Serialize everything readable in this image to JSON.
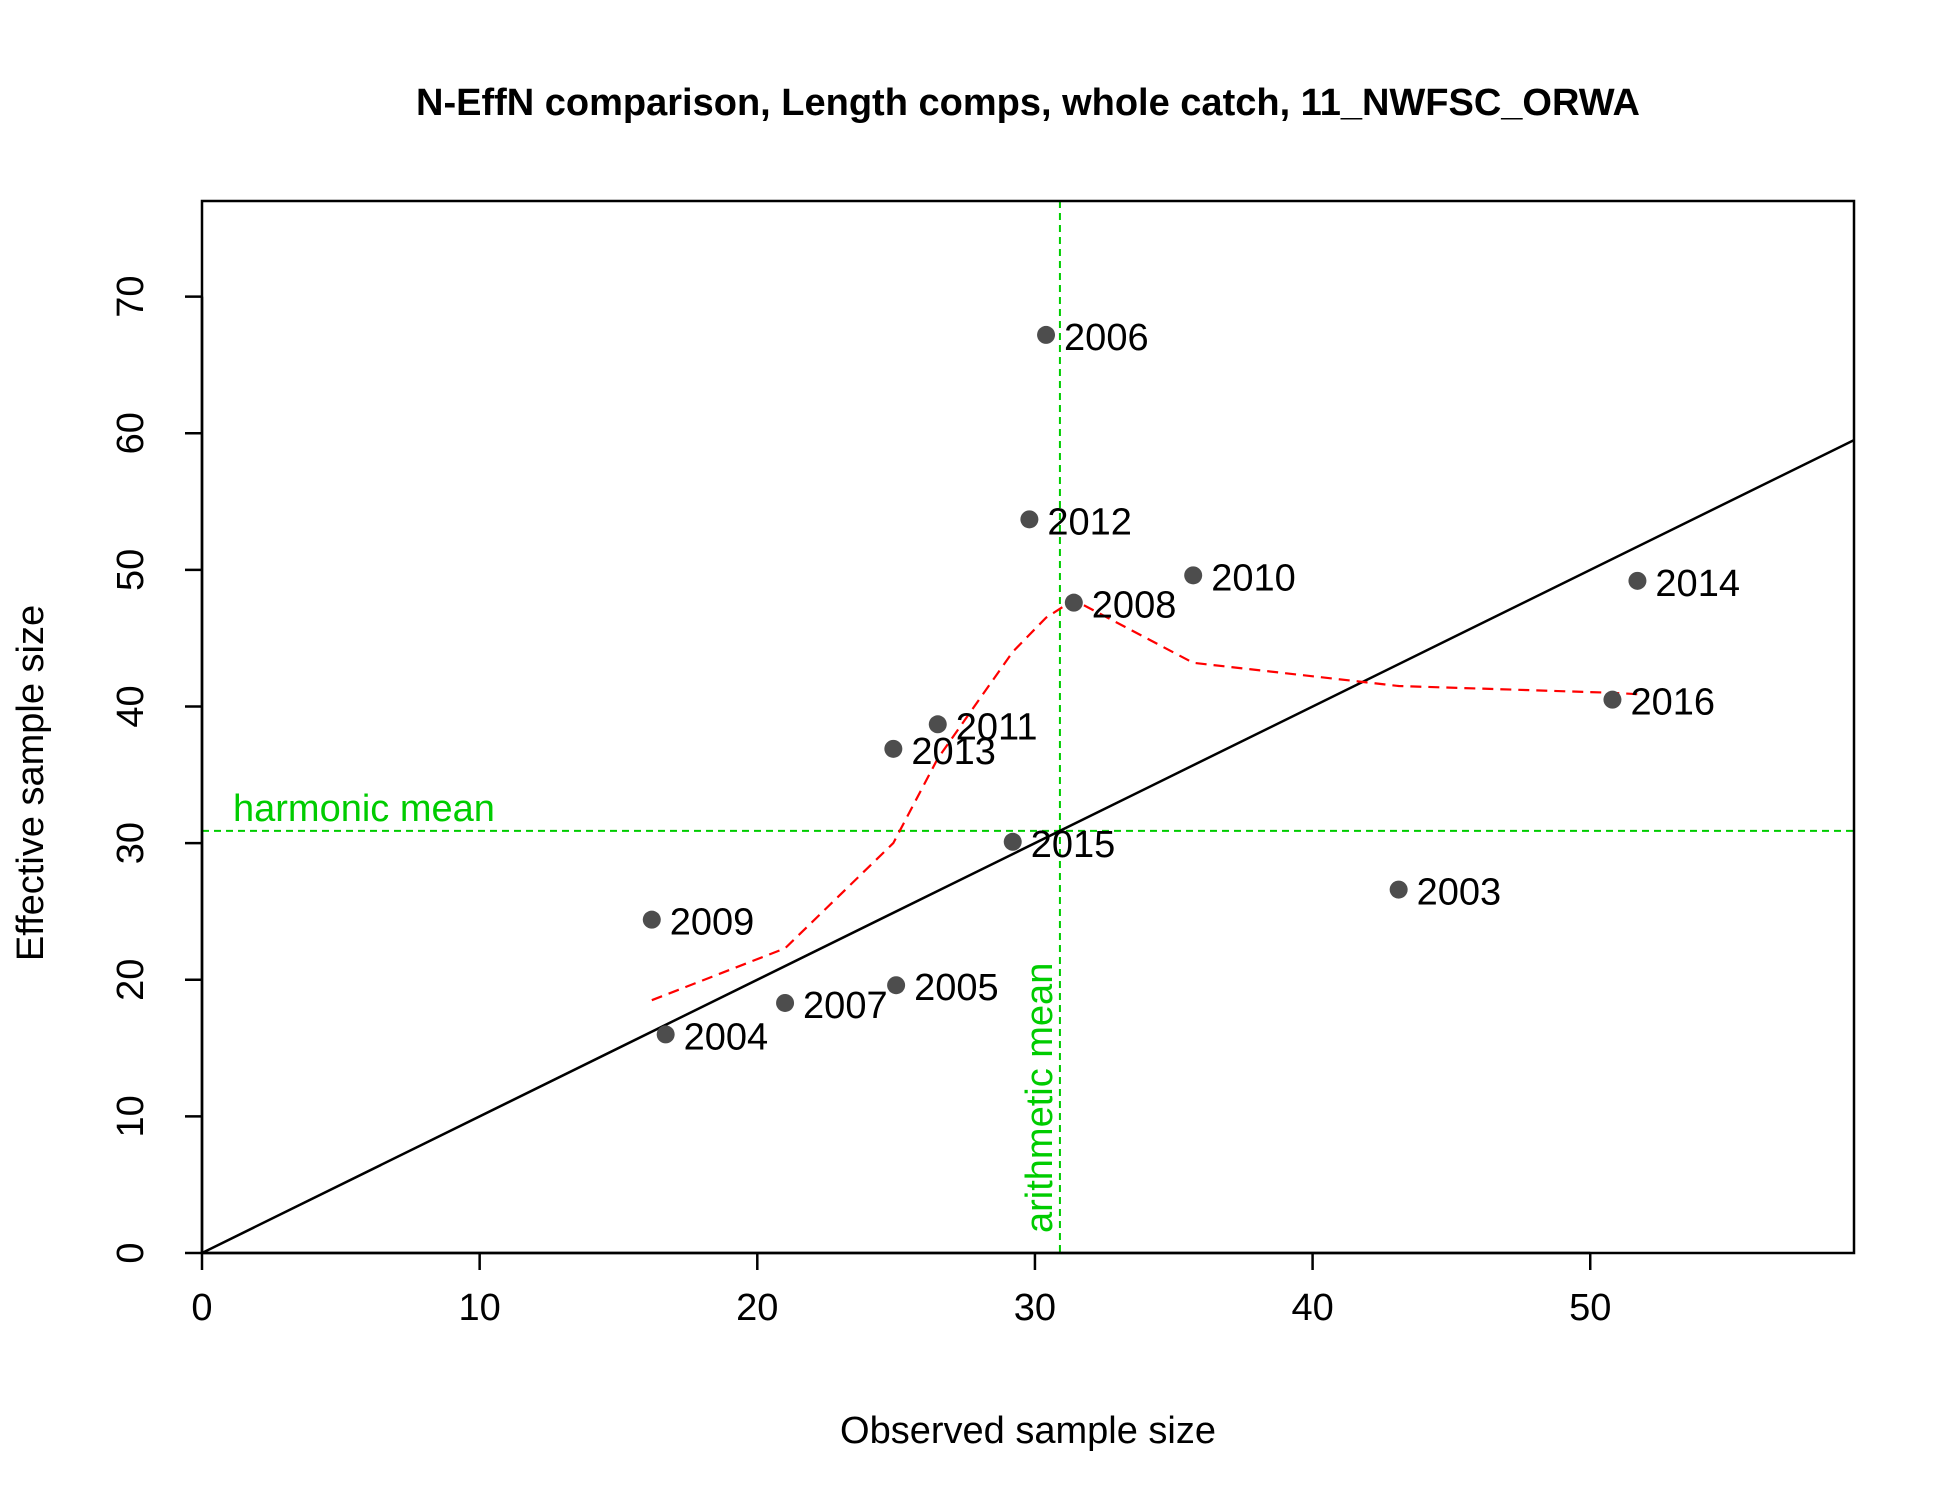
{
  "chart_data": {
    "type": "scatter",
    "title": "N-EffN comparison, Length comps, whole catch, 11_NWFSC_ORWA",
    "xlabel": "Observed sample size",
    "ylabel": "Effective sample size",
    "xlim": [
      0,
      59.5
    ],
    "ylim": [
      0,
      77
    ],
    "xticks": [
      0,
      10,
      20,
      30,
      40,
      50
    ],
    "yticks": [
      0,
      10,
      20,
      30,
      40,
      50,
      60,
      70
    ],
    "grid": false,
    "points": [
      {
        "label": "2003",
        "x": 43.1,
        "y": 26.6
      },
      {
        "label": "2004",
        "x": 16.7,
        "y": 16.0
      },
      {
        "label": "2005",
        "x": 25.0,
        "y": 19.6
      },
      {
        "label": "2006",
        "x": 30.4,
        "y": 67.2
      },
      {
        "label": "2007",
        "x": 21.0,
        "y": 18.3
      },
      {
        "label": "2008",
        "x": 31.4,
        "y": 47.6
      },
      {
        "label": "2009",
        "x": 16.2,
        "y": 24.4
      },
      {
        "label": "2010",
        "x": 35.7,
        "y": 49.6
      },
      {
        "label": "2011",
        "x": 26.5,
        "y": 38.7
      },
      {
        "label": "2012",
        "x": 29.8,
        "y": 53.7
      },
      {
        "label": "2013",
        "x": 24.9,
        "y": 36.9
      },
      {
        "label": "2014",
        "x": 51.7,
        "y": 49.2
      },
      {
        "label": "2015",
        "x": 29.2,
        "y": 30.1
      },
      {
        "label": "2016",
        "x": 50.8,
        "y": 40.5
      }
    ],
    "one_to_one_line": {
      "slope": 1,
      "intercept": 0,
      "color": "#000000"
    },
    "smoother": {
      "color": "#ff0000",
      "x": [
        16.2,
        21.0,
        24.9,
        26.5,
        29.2,
        30.4,
        31.4,
        35.7,
        43.1,
        50.8,
        51.7
      ],
      "y": [
        18.5,
        22.3,
        30.0,
        36.2,
        44.0,
        46.5,
        47.8,
        43.2,
        41.5,
        41.0,
        40.9
      ]
    },
    "reference_lines": {
      "color": "#00cc00",
      "harmonic_mean": {
        "label": "harmonic mean",
        "value": 30.9
      },
      "arithmetic_mean": {
        "label": "arithmetic mean",
        "value": 30.9
      }
    },
    "point_color": "#4d4d4d"
  }
}
